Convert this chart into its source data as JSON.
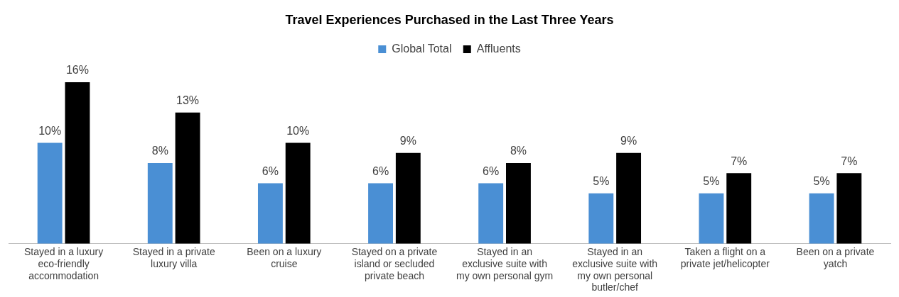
{
  "chart_data": {
    "type": "bar",
    "title": "Travel Experiences Purchased in the Last Three Years",
    "categories": [
      "Stayed in a luxury eco-friendly accommodation",
      "Stayed in a private luxury villa",
      "Been on a luxury cruise",
      "Stayed on a private island or secluded private beach",
      "Stayed in an exclusive suite with my own personal gym",
      "Stayed in an exclusive suite with my own personal butler/chef",
      "Taken a flight on a private jet/helicopter",
      "Been on a private yatch"
    ],
    "series": [
      {
        "name": "Global Total",
        "color": "#4a8fd4",
        "values": [
          10,
          8,
          6,
          6,
          6,
          5,
          5,
          5
        ],
        "value_labels": [
          "10%",
          "8%",
          "6%",
          "6%",
          "6%",
          "5%",
          "5%",
          "5%"
        ]
      },
      {
        "name": "Affluents",
        "color": "#000000",
        "values": [
          16,
          13,
          10,
          9,
          8,
          9,
          7,
          7
        ],
        "value_labels": [
          "16%",
          "13%",
          "10%",
          "9%",
          "8%",
          "9%",
          "7%",
          "7%"
        ]
      }
    ],
    "legend": "top",
    "grid": false
  }
}
